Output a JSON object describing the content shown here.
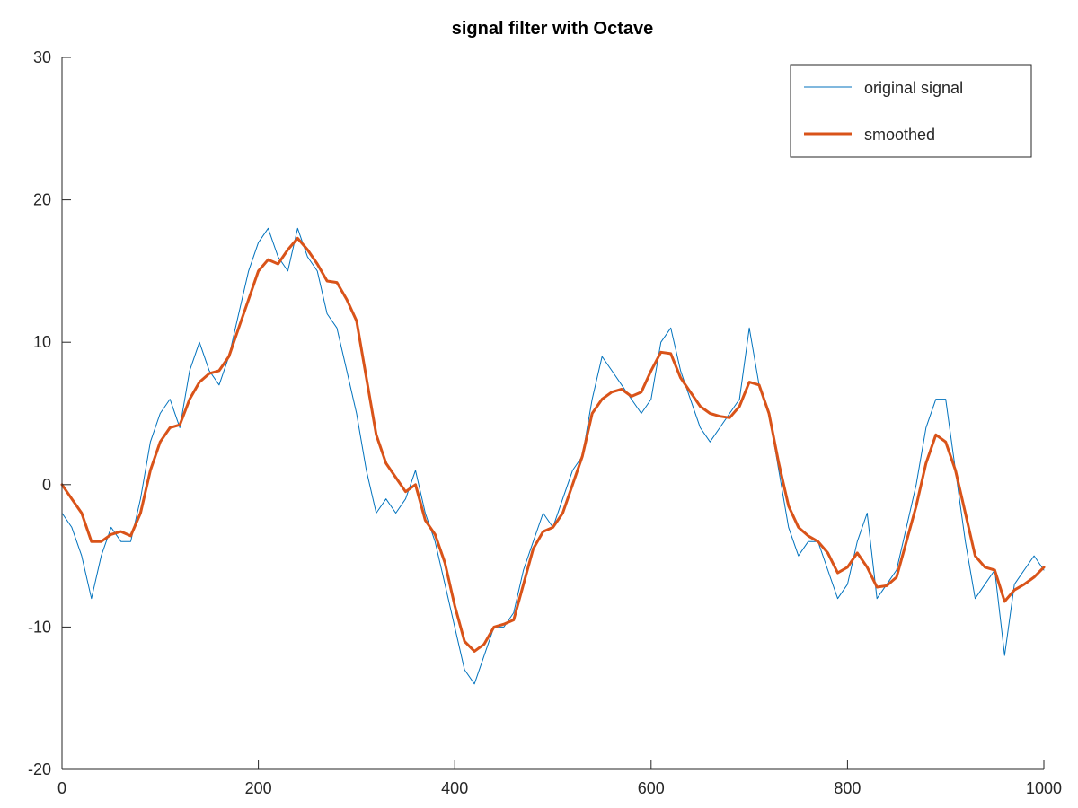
{
  "chart_data": {
    "type": "line",
    "title": "signal filter with Octave",
    "xlabel": "",
    "ylabel": "",
    "xlim": [
      0,
      1000
    ],
    "ylim": [
      -20,
      30
    ],
    "x_ticks": [
      0,
      200,
      400,
      600,
      800,
      1000
    ],
    "y_ticks": [
      -20,
      -10,
      0,
      10,
      20,
      30
    ],
    "x_tick_labels": [
      "0",
      "200",
      "400",
      "600",
      "800",
      "1000"
    ],
    "y_tick_labels": [
      "-20",
      "-10",
      "0",
      "10",
      "20",
      "30"
    ],
    "grid": false,
    "legend": {
      "position": "top-right",
      "entries": [
        "original signal",
        "smoothed"
      ]
    },
    "series": [
      {
        "name": "original signal",
        "color": "#0072BD",
        "x": [
          0,
          10,
          20,
          30,
          40,
          50,
          60,
          70,
          80,
          90,
          100,
          110,
          120,
          130,
          140,
          150,
          160,
          170,
          180,
          190,
          200,
          210,
          220,
          230,
          240,
          250,
          260,
          270,
          280,
          290,
          300,
          310,
          320,
          330,
          340,
          350,
          360,
          370,
          380,
          390,
          400,
          410,
          420,
          430,
          440,
          450,
          460,
          470,
          480,
          490,
          500,
          510,
          520,
          530,
          540,
          550,
          560,
          570,
          580,
          590,
          600,
          610,
          620,
          630,
          640,
          650,
          660,
          670,
          680,
          690,
          700,
          710,
          720,
          730,
          740,
          750,
          760,
          770,
          780,
          790,
          800,
          810,
          820,
          830,
          840,
          850,
          860,
          870,
          880,
          890,
          900,
          910,
          920,
          930,
          940,
          950,
          960,
          970,
          980,
          990,
          1000
        ],
        "y": [
          -2,
          -3,
          -5,
          -8,
          -5,
          -3,
          -4,
          -4,
          -1,
          3,
          5,
          6,
          4,
          8,
          10,
          8,
          7,
          9,
          12,
          15,
          17,
          18,
          16,
          15,
          18,
          16,
          15,
          12,
          11,
          8,
          5,
          1,
          -2,
          -1,
          -2,
          -1,
          1,
          -2,
          -4,
          -7,
          -10,
          -13,
          -14,
          -12,
          -10,
          -10,
          -9,
          -6,
          -4,
          -2,
          -3,
          -1,
          1,
          2,
          6,
          9,
          8,
          7,
          6,
          5,
          6,
          10,
          11,
          8,
          6,
          4,
          3,
          4,
          5,
          6,
          11,
          7,
          5,
          1,
          -3,
          -5,
          -4,
          -4,
          -6,
          -8,
          -7,
          -4,
          -2,
          -8,
          -7,
          -6,
          -3,
          0,
          4,
          6,
          6,
          1,
          -4,
          -8,
          -7,
          -6,
          -12,
          -7,
          -6,
          -5,
          -6
        ]
      },
      {
        "name": "smoothed",
        "color": "#D95319",
        "x": [
          0,
          10,
          20,
          30,
          40,
          50,
          60,
          70,
          80,
          90,
          100,
          110,
          120,
          130,
          140,
          150,
          160,
          170,
          180,
          190,
          200,
          210,
          220,
          230,
          240,
          250,
          260,
          270,
          280,
          290,
          300,
          310,
          320,
          330,
          340,
          350,
          360,
          370,
          380,
          390,
          400,
          410,
          420,
          430,
          440,
          450,
          460,
          470,
          480,
          490,
          500,
          510,
          520,
          530,
          540,
          550,
          560,
          570,
          580,
          590,
          600,
          610,
          620,
          630,
          640,
          650,
          660,
          670,
          680,
          690,
          700,
          710,
          720,
          730,
          740,
          750,
          760,
          770,
          780,
          790,
          800,
          810,
          820,
          830,
          840,
          850,
          860,
          870,
          880,
          890,
          900,
          910,
          920,
          930,
          940,
          950,
          960,
          970,
          980,
          990,
          1000
        ],
        "y": [
          0,
          -1,
          -2,
          -4,
          -4,
          -3.5,
          -3.3,
          -3.6,
          -2,
          1,
          3,
          4,
          4.2,
          6,
          7.2,
          7.8,
          8,
          9,
          11,
          13,
          15,
          15.8,
          15.5,
          16.5,
          17.3,
          16.5,
          15.5,
          14.3,
          14.2,
          13,
          11.5,
          7.5,
          3.5,
          1.5,
          0.5,
          -0.5,
          0,
          -2.5,
          -3.5,
          -5.5,
          -8.5,
          -11,
          -11.7,
          -11.2,
          -10,
          -9.8,
          -9.5,
          -7,
          -4.5,
          -3.3,
          -3,
          -2,
          0,
          2,
          5,
          6,
          6.5,
          6.7,
          6.2,
          6.5,
          8,
          9.3,
          9.2,
          7.5,
          6.5,
          5.5,
          5,
          4.8,
          4.7,
          5.5,
          7.2,
          7,
          5,
          1.5,
          -1.5,
          -3,
          -3.6,
          -4,
          -4.8,
          -6.2,
          -5.8,
          -4.8,
          -5.8,
          -7.2,
          -7.1,
          -6.5,
          -4,
          -1.5,
          1.5,
          3.5,
          3,
          1,
          -2,
          -5,
          -5.8,
          -6,
          -8.2,
          -7.4,
          -7,
          -6.5,
          -5.8
        ]
      }
    ]
  }
}
